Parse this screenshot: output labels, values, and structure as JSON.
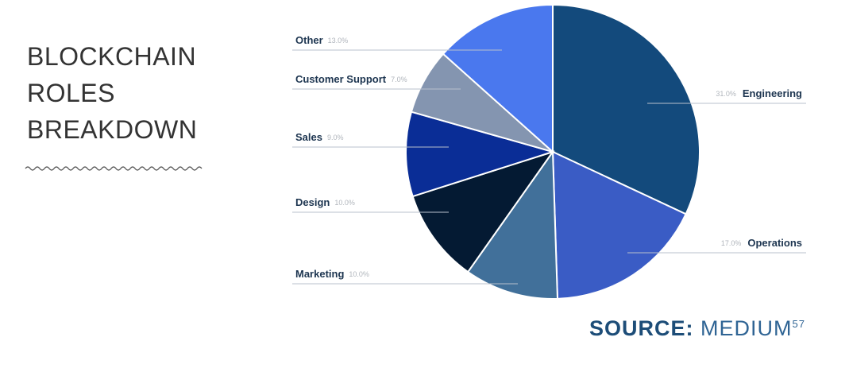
{
  "chart_data": {
    "type": "pie",
    "title": "BLOCKCHAIN ROLES BREAKDOWN",
    "categories": [
      "Engineering",
      "Operations",
      "Marketing",
      "Design",
      "Sales",
      "Customer Support",
      "Other"
    ],
    "values": [
      31,
      17,
      10,
      10,
      9,
      7,
      13
    ],
    "value_labels": [
      "31.0%",
      "17.0%",
      "10.0%",
      "10.0%",
      "9.0%",
      "7.0%",
      "13.0%"
    ],
    "colors": [
      "#134a7c",
      "#3a5cc5",
      "#41709a",
      "#041a33",
      "#0a2d96",
      "#8495b0",
      "#4a78ee"
    ],
    "source": {
      "label": "SOURCE:",
      "text": "MEDIUM",
      "ref": "57"
    }
  }
}
